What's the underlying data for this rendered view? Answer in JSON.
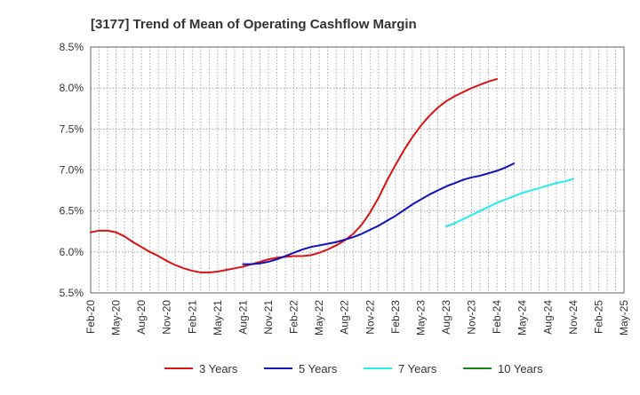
{
  "chart_data": {
    "type": "line",
    "title": "[3177]  Trend of Mean of Operating Cashflow Margin",
    "xlabel": "",
    "ylabel": "",
    "ylim": [
      5.5,
      8.5
    ],
    "y_ticks": [
      "5.5%",
      "6.0%",
      "6.5%",
      "7.0%",
      "7.5%",
      "8.0%",
      "8.5%"
    ],
    "y_tick_values": [
      5.5,
      6.0,
      6.5,
      7.0,
      7.5,
      8.0,
      8.5
    ],
    "x_ticks": [
      "Feb-20",
      "May-20",
      "Aug-20",
      "Nov-20",
      "Feb-21",
      "May-21",
      "Aug-21",
      "Nov-21",
      "Feb-22",
      "May-22",
      "Aug-22",
      "Nov-22",
      "Feb-23",
      "May-23",
      "Aug-23",
      "Nov-23",
      "Feb-24",
      "May-24",
      "Aug-24",
      "Nov-24",
      "Feb-25",
      "May-25"
    ],
    "grid": true,
    "legend_position": "bottom",
    "series": [
      {
        "name": "3 Years",
        "color": "#dd1111",
        "start_index": 0,
        "values": [
          6.24,
          6.26,
          6.26,
          6.24,
          6.19,
          6.12,
          6.06,
          6.0,
          5.95,
          5.89,
          5.84,
          5.8,
          5.77,
          5.75,
          5.75,
          5.76,
          5.78,
          5.8,
          5.82,
          5.85,
          5.88,
          5.91,
          5.93,
          5.94,
          5.95,
          5.95,
          5.96,
          5.99,
          6.03,
          6.08,
          6.14,
          6.22,
          6.33,
          6.48,
          6.66,
          6.87,
          7.06,
          7.24,
          7.4,
          7.54,
          7.66,
          7.76,
          7.84,
          7.9,
          7.95,
          8.0,
          8.04,
          8.08,
          8.11
        ]
      },
      {
        "name": "5 Years",
        "color": "#1111bb",
        "start_index": 18,
        "values": [
          5.85,
          5.85,
          5.86,
          5.88,
          5.91,
          5.95,
          5.99,
          6.03,
          6.06,
          6.08,
          6.1,
          6.12,
          6.15,
          6.18,
          6.22,
          6.27,
          6.32,
          6.38,
          6.44,
          6.51,
          6.58,
          6.64,
          6.7,
          6.75,
          6.8,
          6.84,
          6.88,
          6.91,
          6.93,
          6.96,
          6.99,
          7.03,
          7.08
        ]
      },
      {
        "name": "7 Years",
        "color": "#22eeee",
        "start_index": 42,
        "values": [
          6.31,
          6.35,
          6.4,
          6.45,
          6.5,
          6.55,
          6.6,
          6.64,
          6.68,
          6.72,
          6.75,
          6.78,
          6.81,
          6.84,
          6.86,
          6.89
        ]
      },
      {
        "name": "10 Years",
        "color": "#118811",
        "start_index": 0,
        "values": []
      }
    ]
  }
}
